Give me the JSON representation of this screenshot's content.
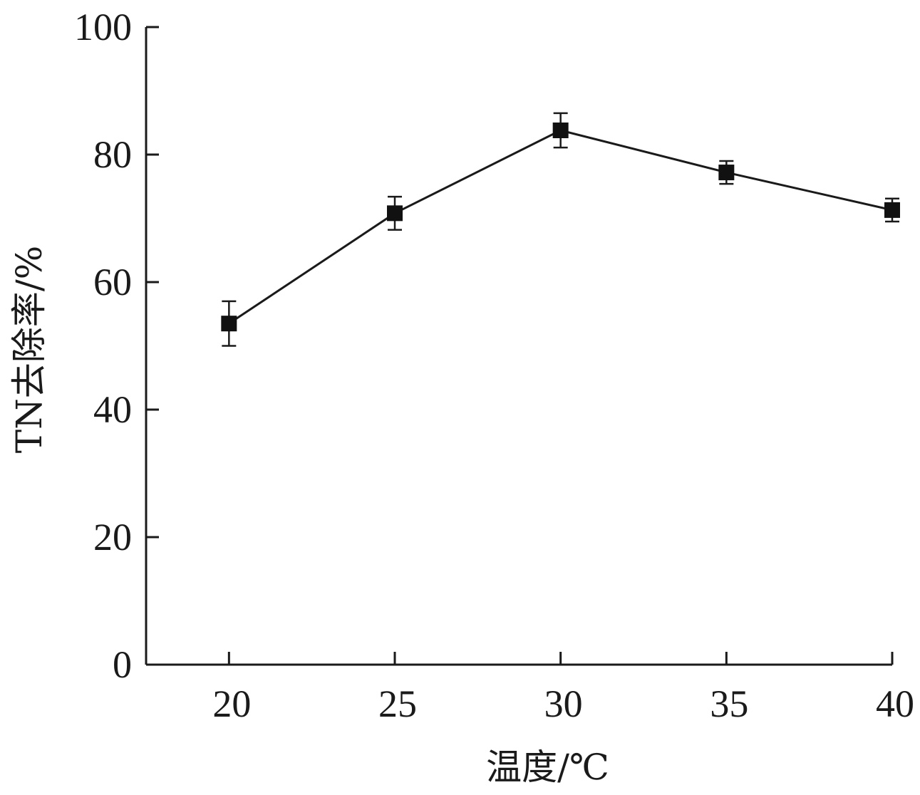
{
  "chart_data": {
    "type": "line",
    "xlabel": "温度/℃",
    "ylabel": "TN去除率/%",
    "x": [
      20,
      25,
      30,
      35,
      40
    ],
    "xticks": [
      20,
      25,
      30,
      35,
      40
    ],
    "yticks": [
      0,
      20,
      40,
      60,
      80,
      100
    ],
    "xlim": [
      17.5,
      40
    ],
    "ylim": [
      0,
      100
    ],
    "grid": false,
    "series": [
      {
        "values": [
          53.5,
          70.8,
          83.8,
          77.2,
          71.3
        ],
        "error": [
          3.5,
          2.6,
          2.7,
          1.8,
          1.8
        ],
        "marker": "square",
        "color": "#111111"
      }
    ]
  }
}
